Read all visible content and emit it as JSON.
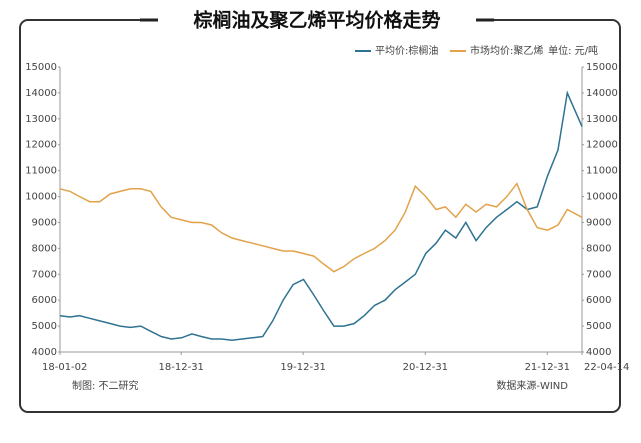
{
  "chart_data": {
    "type": "line",
    "title": "棕榈油及聚乙烯平均价格走势",
    "unit_label": "单位: 元/吨",
    "footer_left": "制图: 不二研究",
    "footer_right": "数据来源-WIND",
    "x": [
      "18-01-02",
      "18-02-01",
      "18-03-01",
      "18-04-01",
      "18-05-01",
      "18-06-01",
      "18-07-01",
      "18-08-01",
      "18-09-01",
      "18-10-01",
      "18-11-01",
      "18-12-01",
      "19-01-01",
      "19-02-01",
      "19-03-01",
      "19-04-01",
      "19-05-01",
      "19-06-01",
      "19-07-01",
      "19-08-01",
      "19-09-01",
      "19-10-01",
      "19-11-01",
      "19-12-01",
      "20-01-01",
      "20-02-01",
      "20-03-01",
      "20-04-01",
      "20-05-01",
      "20-06-01",
      "20-07-01",
      "20-08-01",
      "20-09-01",
      "20-10-01",
      "20-11-01",
      "20-12-01",
      "21-01-01",
      "21-02-01",
      "21-03-01",
      "21-04-01",
      "21-05-01",
      "21-06-01",
      "21-07-01",
      "21-08-01",
      "21-09-01",
      "21-10-01",
      "21-11-01",
      "21-12-01",
      "22-01-01",
      "22-02-01",
      "22-03-01",
      "22-04-14"
    ],
    "xlim": [
      "18-01-02",
      "22-04-14"
    ],
    "xticks": [
      "18-01-02",
      "18-12-31",
      "19-12-31",
      "20-12-31",
      "21-12-31",
      "22-04-14"
    ],
    "ylim": [
      4000,
      15000
    ],
    "yticks": [
      4000,
      5000,
      6000,
      7000,
      8000,
      9000,
      10000,
      11000,
      12000,
      13000,
      14000,
      15000
    ],
    "y2lim": [
      4000,
      15000
    ],
    "y2ticks": [
      4000,
      5000,
      6000,
      7000,
      8000,
      9000,
      10000,
      11000,
      12000,
      13000,
      14000,
      15000
    ],
    "legend": "top-right",
    "series": [
      {
        "name": "平均价:棕榈油",
        "color": "#2f7393",
        "values": [
          5400,
          5350,
          5400,
          5300,
          5200,
          5100,
          5000,
          4950,
          5000,
          4800,
          4600,
          4500,
          4550,
          4700,
          4600,
          4500,
          4500,
          4450,
          4500,
          4550,
          4600,
          5200,
          6000,
          6600,
          6800,
          6200,
          5600,
          5000,
          5000,
          5100,
          5400,
          5800,
          6000,
          6400,
          6700,
          7000,
          7800,
          8200,
          8700,
          8400,
          9000,
          8300,
          8800,
          9200,
          9500,
          9800,
          9500,
          9600,
          10800,
          11800,
          14000,
          12700
        ]
      },
      {
        "name": "市场均价:聚乙烯",
        "color": "#e3a24a",
        "axis": "y2",
        "values": [
          10300,
          10200,
          10000,
          9800,
          9800,
          10100,
          10200,
          10300,
          10300,
          10200,
          9600,
          9200,
          9100,
          9000,
          9000,
          8900,
          8600,
          8400,
          8300,
          8200,
          8100,
          8000,
          7900,
          7900,
          7800,
          7700,
          7400,
          7100,
          7300,
          7600,
          7800,
          8000,
          8300,
          8700,
          9400,
          10400,
          10000,
          9500,
          9600,
          9200,
          9700,
          9400,
          9700,
          9600,
          10000,
          10500,
          9500,
          8800,
          8700,
          8900,
          9500,
          9200
        ]
      }
    ]
  }
}
